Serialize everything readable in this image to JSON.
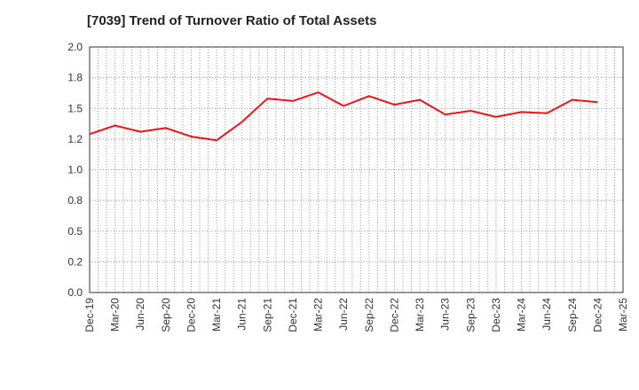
{
  "chart_data": {
    "type": "line",
    "title": "[7039]  Trend of Turnover Ratio of Total Assets",
    "xlabel": "",
    "ylabel": "",
    "ylim": [
      0,
      2.0
    ],
    "y_ticks": [
      "0.0",
      "0.2",
      "0.5",
      "0.8",
      "1.0",
      "1.2",
      "1.5",
      "1.8",
      "2.0"
    ],
    "y_tick_values": [
      0,
      0.25,
      0.5,
      0.75,
      1.0,
      1.25,
      1.5,
      1.75,
      2.0
    ],
    "categories": [
      "Dec-19",
      "Mar-20",
      "Jun-20",
      "Sep-20",
      "Dec-20",
      "Mar-21",
      "Jun-21",
      "Sep-21",
      "Dec-21",
      "Mar-22",
      "Jun-22",
      "Sep-22",
      "Dec-22",
      "Mar-23",
      "Jun-23",
      "Sep-23",
      "Dec-23",
      "Mar-24",
      "Jun-24",
      "Sep-24",
      "Dec-24",
      "Mar-25"
    ],
    "grid": true,
    "series": [
      {
        "name": "",
        "color": "#e8141b",
        "values": [
          1.29,
          1.36,
          1.31,
          1.34,
          1.27,
          1.24,
          1.39,
          1.58,
          1.56,
          1.63,
          1.52,
          1.6,
          1.53,
          1.57,
          1.45,
          1.48,
          1.43,
          1.47,
          1.46,
          1.57,
          1.55,
          null
        ]
      }
    ]
  }
}
